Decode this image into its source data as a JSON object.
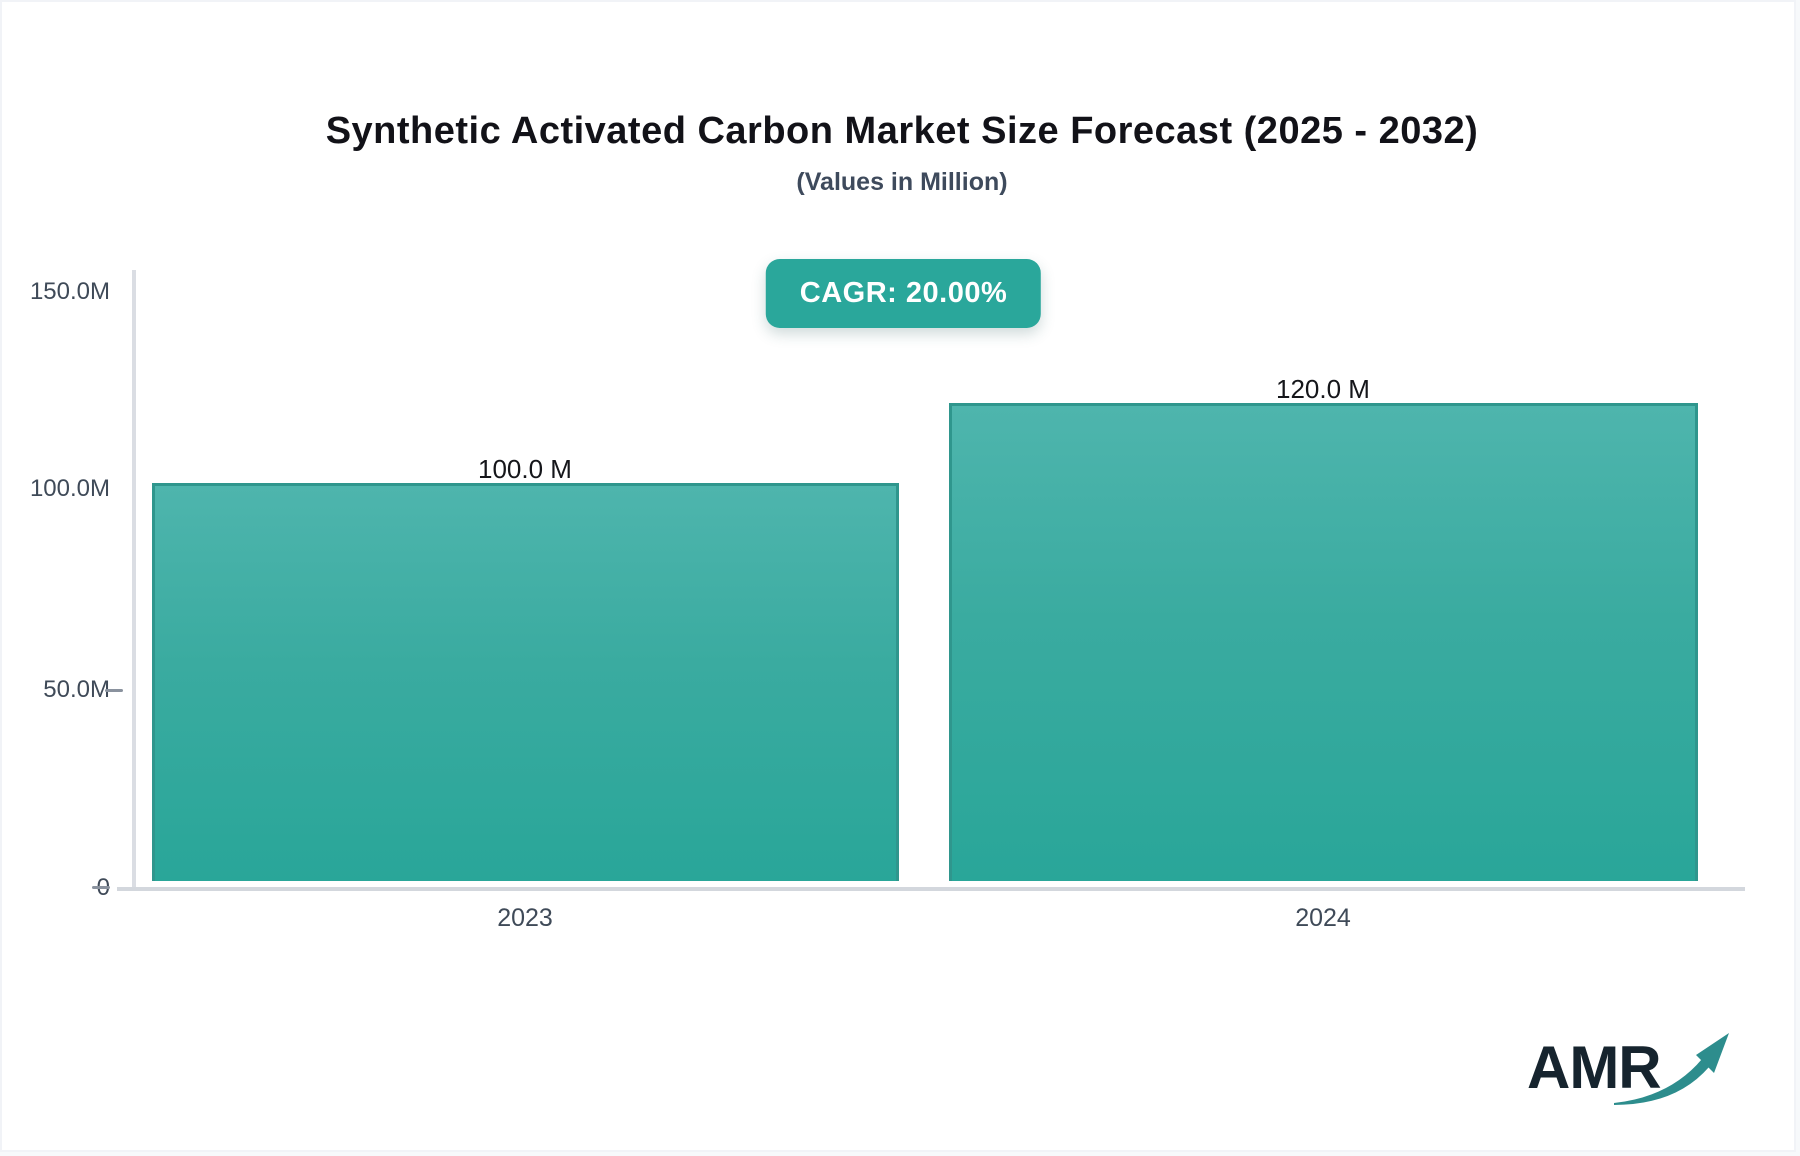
{
  "header": {
    "title": "Synthetic Activated Carbon Market Size Forecast (2025 - 2032)",
    "subtitle": "(Values in Million)"
  },
  "badge": {
    "label": "CAGR: 20.00%",
    "background": "#2aa79b",
    "text_color": "#ffffff"
  },
  "chart_data": {
    "type": "bar",
    "title": "Synthetic Activated Carbon Market Size Forecast (2025 - 2032)",
    "subtitle": "(Values in Million)",
    "unit": "Million",
    "cagr": "20.00%",
    "categories": [
      "2023",
      "2024"
    ],
    "values": [
      100.0,
      120.0
    ],
    "bar_labels": [
      "100.0 M",
      "120.0 M"
    ],
    "ylim": [
      0,
      150
    ],
    "yticks": [
      {
        "value": 150,
        "label": "150.0M"
      },
      {
        "value": 100,
        "label": "100.0M"
      },
      {
        "value": 50,
        "label": "50.0M"
      },
      {
        "value": 0,
        "label": "0"
      }
    ],
    "grid": false,
    "legend": false,
    "bar_color_top": "#4eb5ad",
    "bar_color_bottom": "#29a699",
    "bar_border_color": "#2f968d",
    "axis_line_color": "#d3d7dd"
  },
  "logo": {
    "text": "AMR",
    "text_color": "#16242e",
    "arrow_color": "#2d8d8d"
  }
}
